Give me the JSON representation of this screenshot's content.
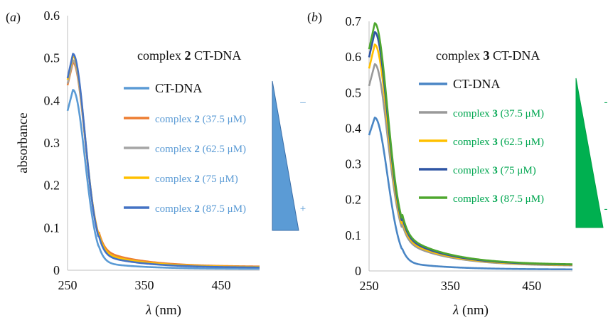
{
  "chart_data": [
    {
      "type": "line",
      "panel_label": "(a)",
      "xlabel_symbol": "λ",
      "xlabel_unit": " (nm)",
      "ylabel": "absorbance",
      "xlim": [
        250,
        500
      ],
      "ylim": [
        0,
        0.6
      ],
      "x_ticks": [
        250,
        350,
        450
      ],
      "y_ticks": [
        0,
        0.1,
        0.2,
        0.3,
        0.4,
        0.5,
        0.6
      ],
      "grid": false,
      "legend_title_prefix": "complex ",
      "legend_title_bold": "2",
      "legend_title_suffix": " CT-DNA",
      "legend_text_color": "#5b9bd5",
      "gradient_color": "#5b9bd5",
      "gradient_top_label": "–",
      "gradient_bottom_label": "+",
      "series": [
        {
          "label_prefix": "CT-DNA",
          "label_bold": "",
          "label_suffix": "",
          "color": "#5b9bd5",
          "peak": 0.41,
          "tail": 0.003
        },
        {
          "label_prefix": "complex ",
          "label_bold": "2",
          "label_suffix": " (37.5 μM)",
          "color": "#ed7d31",
          "peak": 0.45,
          "tail": 0.008
        },
        {
          "label_prefix": "complex ",
          "label_bold": "2",
          "label_suffix": " (62.5 μM)",
          "color": "#a5a5a5",
          "peak": 0.46,
          "tail": 0.007
        },
        {
          "label_prefix": "complex ",
          "label_bold": "2",
          "label_suffix": " (75 μM)",
          "color": "#ffc000",
          "peak": 0.47,
          "tail": 0.007
        },
        {
          "label_prefix": "complex ",
          "label_bold": "2",
          "label_suffix": " (87.5 μM)",
          "color": "#4472c4",
          "peak": 0.48,
          "tail": 0.006
        }
      ]
    },
    {
      "type": "line",
      "panel_label": "(b)",
      "xlabel_symbol": "λ",
      "xlabel_unit": " (nm)",
      "ylabel": "",
      "xlim": [
        250,
        500
      ],
      "ylim": [
        0,
        0.7
      ],
      "x_ticks": [
        250,
        350,
        450
      ],
      "y_ticks": [
        0,
        0.1,
        0.2,
        0.3,
        0.4,
        0.5,
        0.6,
        0.7
      ],
      "grid": false,
      "legend_title_prefix": "complex ",
      "legend_title_bold": "3",
      "legend_title_suffix": " CT-DNA",
      "legend_text_color": "#00a650",
      "gradient_color": "#00b050",
      "gradient_top_label": "-",
      "gradient_bottom_label": "-",
      "series": [
        {
          "label_prefix": "CT-DNA",
          "label_bold": "",
          "label_suffix": "",
          "color": "#4a86c5",
          "peak": 0.41,
          "tail": 0.004
        },
        {
          "label_prefix": "complex ",
          "label_bold": "3",
          "label_suffix": " (37.5 μM)",
          "color": "#999999",
          "peak": 0.51,
          "tail": 0.014
        },
        {
          "label_prefix": "complex ",
          "label_bold": "3",
          "label_suffix": " (62.5 μM)",
          "color": "#ffc000",
          "peak": 0.56,
          "tail": 0.015
        },
        {
          "label_prefix": "complex ",
          "label_bold": "3",
          "label_suffix": " (75 μM)",
          "color": "#2f55a4",
          "peak": 0.59,
          "tail": 0.016
        },
        {
          "label_prefix": "complex ",
          "label_bold": "3",
          "label_suffix": " (87.5 μM)",
          "color": "#4ea72e",
          "peak": 0.61,
          "tail": 0.017
        }
      ]
    }
  ]
}
